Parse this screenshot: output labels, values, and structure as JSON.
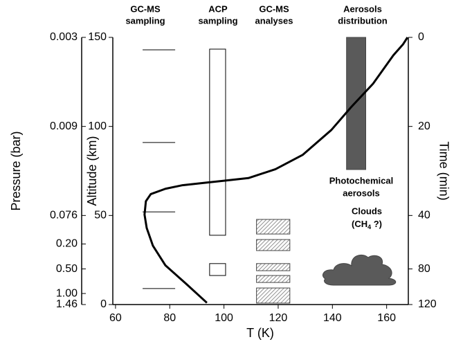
{
  "chart_data": {
    "type": "line",
    "x_label": "T (K)",
    "y_label": "Altitude (km)",
    "xlim": [
      59,
      168
    ],
    "ylim": [
      0,
      150
    ],
    "xticks": [
      60,
      80,
      100,
      120,
      140,
      160
    ],
    "yticks": [
      0,
      50,
      100,
      150
    ],
    "series": [
      {
        "color": "#000000",
        "x": [
          93.7,
          86,
          78.4,
          73.8,
          71.5,
          70.7,
          71.2,
          73,
          78.4,
          84.7,
          93.7,
          100,
          109,
          119,
          129,
          139.6,
          147,
          155,
          162.5,
          166,
          167.7
        ],
        "values": [
          1,
          11.7,
          22,
          33,
          43,
          50.5,
          58,
          62,
          65,
          67,
          68.5,
          69.5,
          71,
          76,
          84,
          98,
          111,
          124,
          140,
          146,
          150
        ]
      }
    ],
    "pressure_axis": {
      "label": "Pressure (bar)",
      "ticks": [
        0.003,
        0.009,
        0.076,
        {
          "value": 0.2,
          "label": "0.20"
        },
        {
          "value": 0.5,
          "label": "0.50"
        },
        {
          "value": 1,
          "label": "1.00"
        },
        1.46
      ],
      "altitudes": [
        150,
        100,
        50,
        34,
        20,
        6.2,
        0
      ]
    },
    "time_axis": {
      "label": "Time (min)",
      "ticks": [
        0,
        20,
        40,
        80,
        120
      ],
      "altitudes": [
        150,
        100,
        50,
        20,
        0
      ]
    },
    "gcms_sampling": {
      "header": [
        "GC-MS",
        "sampling"
      ],
      "x": [
        70,
        82
      ],
      "altitudes": [
        143,
        91,
        52,
        9
      ]
    },
    "acp_sampling": {
      "header": [
        "ACP",
        "sampling"
      ],
      "x": [
        94.7,
        100.6
      ],
      "ranges": [
        [
          38.9,
          143.4
        ],
        [
          16.3,
          23
        ]
      ]
    },
    "gcms_analyses": {
      "header": [
        "GC-MS",
        "analyses"
      ],
      "x": [
        112,
        124.3
      ],
      "ranges": [
        [
          39.6,
          47.8
        ],
        [
          30.3,
          36.5
        ],
        [
          19,
          23
        ],
        [
          12.4,
          16.3
        ],
        [
          0.8,
          9.3
        ]
      ]
    },
    "aerosols": {
      "header": [
        "Aerosols",
        "distribution"
      ],
      "x": [
        145.2,
        152.3
      ],
      "ranges": [
        [
          75.8,
          150
        ]
      ],
      "color": "#5a5a5a"
    },
    "photochemical_label": [
      "Photochemical",
      "aerosols"
    ],
    "clouds_label": [
      "Clouds",
      "(CH",
      "4",
      " ?)"
    ]
  }
}
